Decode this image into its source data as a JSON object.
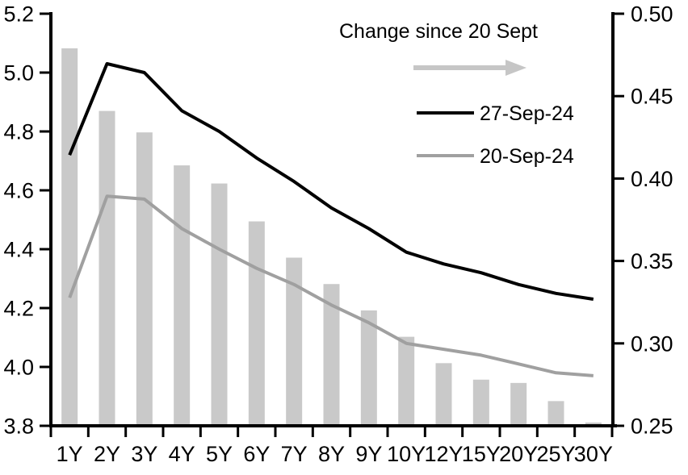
{
  "chart_data": {
    "type": "combo",
    "categories": [
      "1Y",
      "2Y",
      "3Y",
      "4Y",
      "5Y",
      "6Y",
      "7Y",
      "8Y",
      "9Y",
      "10Y",
      "12Y",
      "15Y",
      "20Y",
      "25Y",
      "30Y"
    ],
    "series": [
      {
        "name": "Change since 20 Sept",
        "type": "bar",
        "axis": "right",
        "color": "#c9c9c9",
        "values": [
          0.479,
          0.441,
          0.428,
          0.408,
          0.397,
          0.374,
          0.352,
          0.336,
          0.32,
          0.304,
          0.288,
          0.278,
          0.276,
          0.265,
          0.252
        ]
      },
      {
        "name": "27-Sep-24",
        "type": "line",
        "axis": "left",
        "color": "#000000",
        "values": [
          4.72,
          5.03,
          5.0,
          4.87,
          4.8,
          4.71,
          4.63,
          4.54,
          4.47,
          4.39,
          4.35,
          4.32,
          4.28,
          4.25,
          4.23
        ]
      },
      {
        "name": "20-Sep-24",
        "type": "line",
        "axis": "left",
        "color": "#a0a0a0",
        "values": [
          4.235,
          4.58,
          4.57,
          4.47,
          4.4,
          4.335,
          4.28,
          4.21,
          4.15,
          4.08,
          4.06,
          4.04,
          4.01,
          3.98,
          3.97
        ]
      }
    ],
    "left_axis": {
      "min": 3.8,
      "max": 5.2,
      "ticks": [
        "5.2",
        "5.0",
        "4.8",
        "4.6",
        "4.4",
        "4.2",
        "4.0",
        "3.8"
      ]
    },
    "right_axis": {
      "min": 0.25,
      "max": 0.5,
      "ticks": [
        "0.50",
        "0.45",
        "0.40",
        "0.35",
        "0.30",
        "0.25"
      ]
    },
    "legend": {
      "title": "Change since 20 Sept",
      "arrow_color": "#c6c6c6",
      "items": [
        {
          "label": "27-Sep-24",
          "color": "#000000"
        },
        {
          "label": "20-Sep-24",
          "color": "#a0a0a0"
        }
      ]
    },
    "grid": "off",
    "legend_position": "top-right-inside"
  }
}
